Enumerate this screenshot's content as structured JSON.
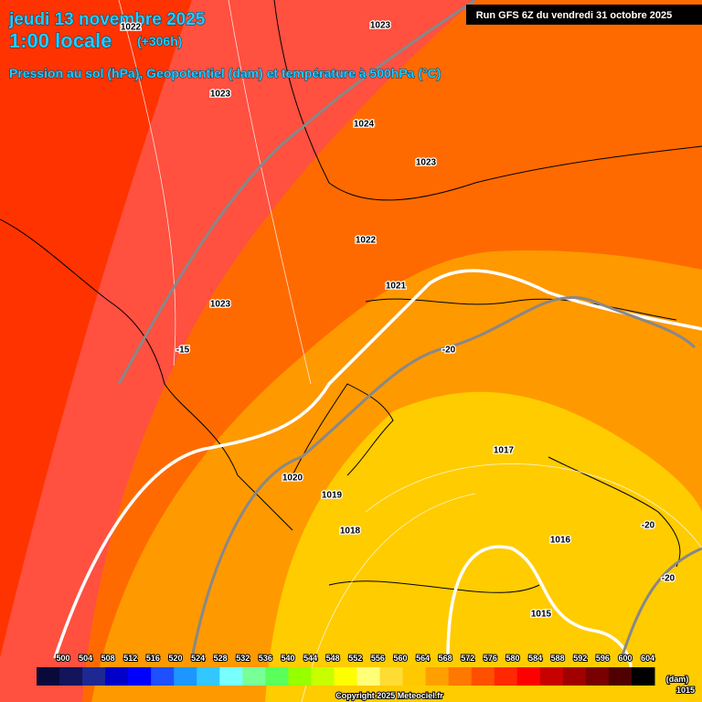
{
  "header": {
    "date": "jeudi 13 novembre 2025",
    "time": "1:00 locale",
    "lead": "(+306h)",
    "subtitle": "Pression au sol (hPa), Geopotentiel (dam) et température à 500hPa (°C)"
  },
  "run": "Run GFS 6Z du vendredi 31 octobre 2025",
  "map_labels": [
    1023,
    1022,
    1023,
    1024,
    1023,
    1022,
    1021,
    1023,
    -15,
    -20,
    1020,
    1019,
    1018,
    1017,
    1016,
    -20,
    -20,
    1015
  ],
  "legend": {
    "values": [
      500,
      504,
      508,
      512,
      516,
      520,
      524,
      528,
      532,
      536,
      540,
      544,
      548,
      552,
      556,
      560,
      564,
      568,
      572,
      576,
      580,
      584,
      588,
      592,
      596,
      600,
      604
    ],
    "colors": [
      "#0a0a3a",
      "#14145a",
      "#1e2890",
      "#0000c8",
      "#0000ff",
      "#1e50ff",
      "#1e96ff",
      "#32c8ff",
      "#78ffff",
      "#78ff96",
      "#5aff5a",
      "#96ff00",
      "#c8ff00",
      "#ffff00",
      "#ffff78",
      "#ffdc32",
      "#ffc800",
      "#ffa000",
      "#ff7800",
      "#ff5000",
      "#ff2800",
      "#ff0000",
      "#c80000",
      "#a00000",
      "#780000",
      "#500000",
      "#000000"
    ],
    "unit": "(dam)",
    "extra": "1015"
  },
  "copyright": "Copyright 2025 Meteociel.fr"
}
